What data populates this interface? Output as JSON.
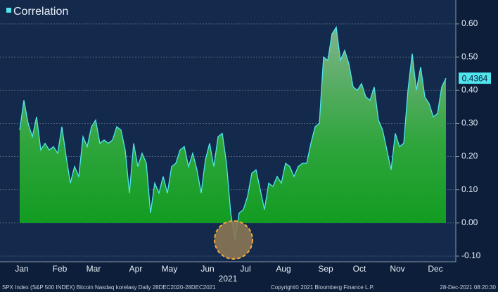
{
  "chart_data": {
    "type": "area",
    "legend": "top-left",
    "grid": true,
    "x_label": "2021",
    "categories": [
      "Jan",
      null,
      null,
      null,
      null,
      null,
      null,
      null,
      null,
      "Feb",
      null,
      null,
      null,
      null,
      null,
      null,
      null,
      "Mar",
      null,
      null,
      null,
      null,
      null,
      null,
      null,
      null,
      null,
      "Apr",
      null,
      null,
      null,
      null,
      null,
      null,
      null,
      "May",
      null,
      null,
      null,
      null,
      null,
      null,
      null,
      null,
      "Jun",
      null,
      null,
      null,
      null,
      null,
      null,
      null,
      null,
      "Jul",
      null,
      null,
      null,
      null,
      null,
      null,
      null,
      null,
      "Aug",
      null,
      null,
      null,
      null,
      null,
      null,
      null,
      null,
      null,
      "Sep",
      null,
      null,
      null,
      null,
      null,
      null,
      null,
      "Oct",
      null,
      null,
      null,
      null,
      null,
      null,
      null,
      null,
      "Nov",
      null,
      null,
      null,
      null,
      null,
      null,
      null,
      null,
      "Dec",
      null,
      null,
      null
    ],
    "series": [
      {
        "name": "Correlation",
        "color": "#4fe6ee",
        "values": [
          0.28,
          0.37,
          0.3,
          0.26,
          0.32,
          0.22,
          0.24,
          0.22,
          0.23,
          0.21,
          0.29,
          0.2,
          0.12,
          0.17,
          0.14,
          0.26,
          0.23,
          0.29,
          0.31,
          0.24,
          0.25,
          0.24,
          0.25,
          0.29,
          0.28,
          0.22,
          0.09,
          0.24,
          0.17,
          0.21,
          0.18,
          0.03,
          0.12,
          0.09,
          0.14,
          0.09,
          0.17,
          0.18,
          0.22,
          0.23,
          0.17,
          0.21,
          0.16,
          0.09,
          0.19,
          0.24,
          0.17,
          0.26,
          0.27,
          0.18,
          0.03,
          -0.05,
          0.03,
          0.04,
          0.08,
          0.15,
          0.16,
          0.1,
          0.04,
          0.12,
          0.11,
          0.14,
          0.12,
          0.18,
          0.17,
          0.14,
          0.17,
          0.18,
          0.18,
          0.24,
          0.29,
          0.3,
          0.5,
          0.49,
          0.57,
          0.59,
          0.49,
          0.52,
          0.48,
          0.41,
          0.4,
          0.42,
          0.38,
          0.37,
          0.41,
          0.31,
          0.28,
          0.22,
          0.16,
          0.27,
          0.23,
          0.24,
          0.4,
          0.51,
          0.4,
          0.47,
          0.38,
          0.36,
          0.32,
          0.33,
          0.41,
          0.4364
        ]
      }
    ],
    "ylim": [
      -0.117,
      0.672
    ],
    "yticks": [
      {
        "value": -0.1,
        "label": "-0.10"
      },
      {
        "value": 0,
        "label": "0.00"
      },
      {
        "value": 0.1,
        "label": "0.10"
      },
      {
        "value": 0.2,
        "label": "0.20"
      },
      {
        "value": 0.3,
        "label": "0.30"
      },
      {
        "value": 0.4,
        "label": "0.40"
      },
      {
        "value": 0.5,
        "label": "0.50"
      },
      {
        "value": 0.6,
        "label": "0.60"
      }
    ],
    "footer": {
      "source": "SPX Index (S&P 500 INDEX) Bitcoin Nasdaq korelasy  Daily 28DEC2020-28DEC2021",
      "copyright": "Copyright© 2021 Bloomberg Finance L.P.",
      "timestamp": "28-Dec-2021 08:20:30"
    }
  }
}
